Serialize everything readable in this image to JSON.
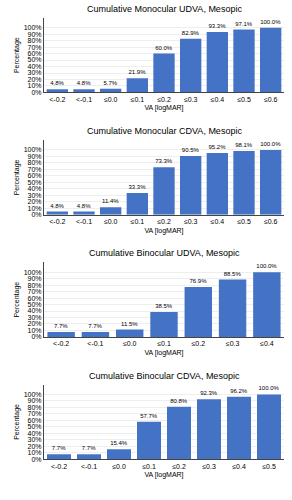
{
  "chart_data": [
    {
      "type": "bar",
      "title": "Cumulative Monocular UDVA, Mesopic",
      "xlabel": "VA [logMAR]",
      "ylabel": "Percentage",
      "categories": [
        "<-0.2",
        "<-0.1",
        "≤0.0",
        "≤0.1",
        "≤0.2",
        "≤0.3",
        "≤0.4",
        "≤0.5",
        "≤0.6"
      ],
      "values": [
        4.8,
        4.8,
        5.7,
        21.9,
        60.0,
        82.9,
        93.3,
        97.1,
        100.0
      ],
      "value_labels": [
        "4.8%",
        "4.8%",
        "5.7%",
        "21.9%",
        "60.0%",
        "82.9%",
        "93.3%",
        "97.1%",
        "100.0%"
      ],
      "color": "#4472c4",
      "data_labels": true,
      "grid": true,
      "ylim": [
        0,
        115
      ],
      "yticks": [
        {
          "value": 0,
          "label": "0%"
        },
        {
          "value": 10,
          "label": "10%"
        },
        {
          "value": 20,
          "label": "20%"
        },
        {
          "value": 30,
          "label": "30%"
        },
        {
          "value": 40,
          "label": "40%"
        },
        {
          "value": 50,
          "label": "50%"
        },
        {
          "value": 60,
          "label": "60%"
        },
        {
          "value": 70,
          "label": "70%"
        },
        {
          "value": 80,
          "label": "80%"
        },
        {
          "value": 90,
          "label": "90%"
        },
        {
          "value": 100,
          "label": "100%"
        }
      ]
    },
    {
      "type": "bar",
      "title": "Cumulative Monocular CDVA, Mesopic",
      "xlabel": "VA [logMAR]",
      "ylabel": "Percentage",
      "categories": [
        "<-0.2",
        "<-0.1",
        "≤0.0",
        "≤0.1",
        "≤0.2",
        "≤0.3",
        "≤0.4",
        "≤0.5",
        "≤0.6"
      ],
      "values": [
        4.8,
        4.8,
        11.4,
        33.3,
        73.3,
        90.5,
        95.2,
        98.1,
        100.0
      ],
      "value_labels": [
        "4.8%",
        "4.8%",
        "11.4%",
        "33.3%",
        "73.3%",
        "90.5%",
        "95.2%",
        "98.1%",
        "100.0%"
      ],
      "color": "#4472c4",
      "data_labels": true,
      "grid": true,
      "ylim": [
        0,
        115
      ],
      "yticks": [
        {
          "value": 0,
          "label": "0%"
        },
        {
          "value": 10,
          "label": "10%"
        },
        {
          "value": 20,
          "label": "20%"
        },
        {
          "value": 30,
          "label": "30%"
        },
        {
          "value": 40,
          "label": "40%"
        },
        {
          "value": 50,
          "label": "50%"
        },
        {
          "value": 60,
          "label": "60%"
        },
        {
          "value": 70,
          "label": "70%"
        },
        {
          "value": 80,
          "label": "80%"
        },
        {
          "value": 90,
          "label": "90%"
        },
        {
          "value": 100,
          "label": "100%"
        }
      ]
    },
    {
      "type": "bar",
      "title": "Cumulative Binocular UDVA, Mesopic",
      "xlabel": "VA [logMAR]",
      "ylabel": "Percentage",
      "categories": [
        "<-0.2",
        "<-0.1",
        "≤0.0",
        "≤0.1",
        "≤0.2",
        "≤0.3",
        "≤0.4"
      ],
      "values": [
        7.7,
        7.7,
        11.5,
        38.5,
        76.9,
        88.5,
        100.0
      ],
      "value_labels": [
        "7.7%",
        "7.7%",
        "11.5%",
        "38.5%",
        "76.9%",
        "88.5%",
        "100.0%"
      ],
      "color": "#4472c4",
      "data_labels": true,
      "grid": true,
      "ylim": [
        0,
        115
      ],
      "yticks": [
        {
          "value": 0,
          "label": "0%"
        },
        {
          "value": 10,
          "label": "10%"
        },
        {
          "value": 20,
          "label": "20%"
        },
        {
          "value": 30,
          "label": "30%"
        },
        {
          "value": 40,
          "label": "40%"
        },
        {
          "value": 50,
          "label": "50%"
        },
        {
          "value": 60,
          "label": "60%"
        },
        {
          "value": 70,
          "label": "70%"
        },
        {
          "value": 80,
          "label": "80%"
        },
        {
          "value": 90,
          "label": "90%"
        },
        {
          "value": 100,
          "label": "100%"
        }
      ]
    },
    {
      "type": "bar",
      "title": "Cumulative Binocular CDVA, Mesopic",
      "xlabel": "VA [logMAR]",
      "ylabel": "Percentage",
      "categories": [
        "<-0.2",
        "<-0.1",
        "≤0.0",
        "≤0.1",
        "≤0.2",
        "≤0.3",
        "≤0.4",
        "≤0.5"
      ],
      "values": [
        7.7,
        7.7,
        15.4,
        57.7,
        80.8,
        92.3,
        96.2,
        100.0
      ],
      "value_labels": [
        "7.7%",
        "7.7%",
        "15.4%",
        "57.7%",
        "80.8%",
        "92.3%",
        "96.2%",
        "100.0%"
      ],
      "color": "#4472c4",
      "data_labels": true,
      "grid": true,
      "ylim": [
        0,
        115
      ],
      "yticks": [
        {
          "value": 0,
          "label": "0%"
        },
        {
          "value": 10,
          "label": "10%"
        },
        {
          "value": 20,
          "label": "20%"
        },
        {
          "value": 30,
          "label": "30%"
        },
        {
          "value": 40,
          "label": "40%"
        },
        {
          "value": 50,
          "label": "50%"
        },
        {
          "value": 60,
          "label": "60%"
        },
        {
          "value": 70,
          "label": "70%"
        },
        {
          "value": 80,
          "label": "80%"
        },
        {
          "value": 90,
          "label": "90%"
        },
        {
          "value": 100,
          "label": "100%"
        }
      ]
    }
  ]
}
